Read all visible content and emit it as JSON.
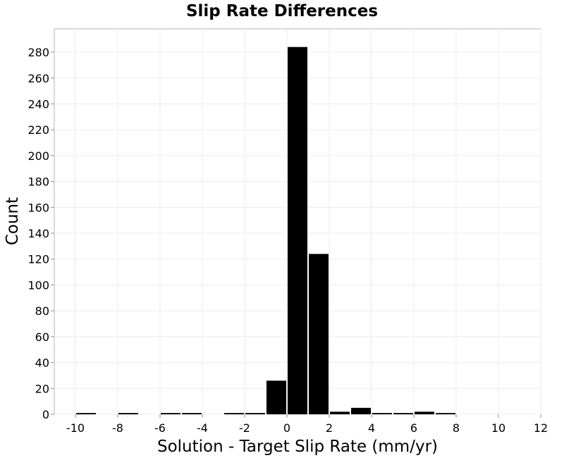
{
  "chart_data": {
    "type": "bar",
    "title": "Slip Rate Differences",
    "xlabel": "Solution - Target Slip Rate (mm/yr)",
    "ylabel": "Count",
    "xlim": [
      -11,
      12
    ],
    "ylim": [
      0,
      298
    ],
    "bin_width": 1,
    "xticks": [
      -10,
      -8,
      -6,
      -4,
      -2,
      0,
      2,
      4,
      6,
      8,
      10,
      12
    ],
    "xtick_labels": [
      "-10",
      "-8",
      "-6",
      "-4",
      "-2",
      "0",
      "2",
      "4",
      "6",
      "8",
      "10",
      "12"
    ],
    "yticks": [
      0,
      20,
      40,
      60,
      80,
      100,
      120,
      140,
      160,
      180,
      200,
      220,
      240,
      260,
      280
    ],
    "ytick_labels": [
      "0",
      "20",
      "40",
      "60",
      "80",
      "100",
      "120",
      "140",
      "160",
      "180",
      "200",
      "220",
      "240",
      "260",
      "280"
    ],
    "bins": [
      -10,
      -8,
      -6,
      -5,
      -3,
      -2,
      -1,
      0,
      1,
      2,
      3,
      4,
      5,
      6,
      7
    ],
    "values": [
      1,
      1,
      1,
      1,
      1,
      1,
      26,
      284,
      124,
      2,
      5,
      1,
      1,
      2,
      1
    ],
    "grid": true,
    "bar_color": "#000000"
  }
}
